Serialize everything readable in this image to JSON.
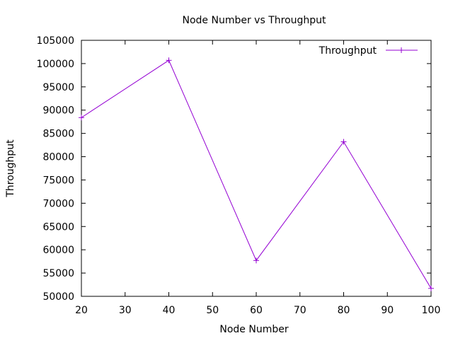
{
  "chart_data": {
    "type": "line",
    "title": "Node Number vs Throughput",
    "xlabel": "Node Number",
    "ylabel": "Throughput",
    "xlim": [
      20,
      100
    ],
    "ylim": [
      50000,
      105000
    ],
    "x_ticks": [
      20,
      30,
      40,
      50,
      60,
      70,
      80,
      90,
      100
    ],
    "y_ticks": [
      50000,
      55000,
      60000,
      65000,
      70000,
      75000,
      80000,
      85000,
      90000,
      95000,
      100000,
      105000
    ],
    "grid": false,
    "legend_position": "top-right",
    "series": [
      {
        "name": "Throughput",
        "color": "#9400d3",
        "marker": "plus",
        "x": [
          20,
          40,
          60,
          80,
          100
        ],
        "y": [
          88400,
          100700,
          57700,
          83200,
          51700
        ]
      }
    ]
  }
}
